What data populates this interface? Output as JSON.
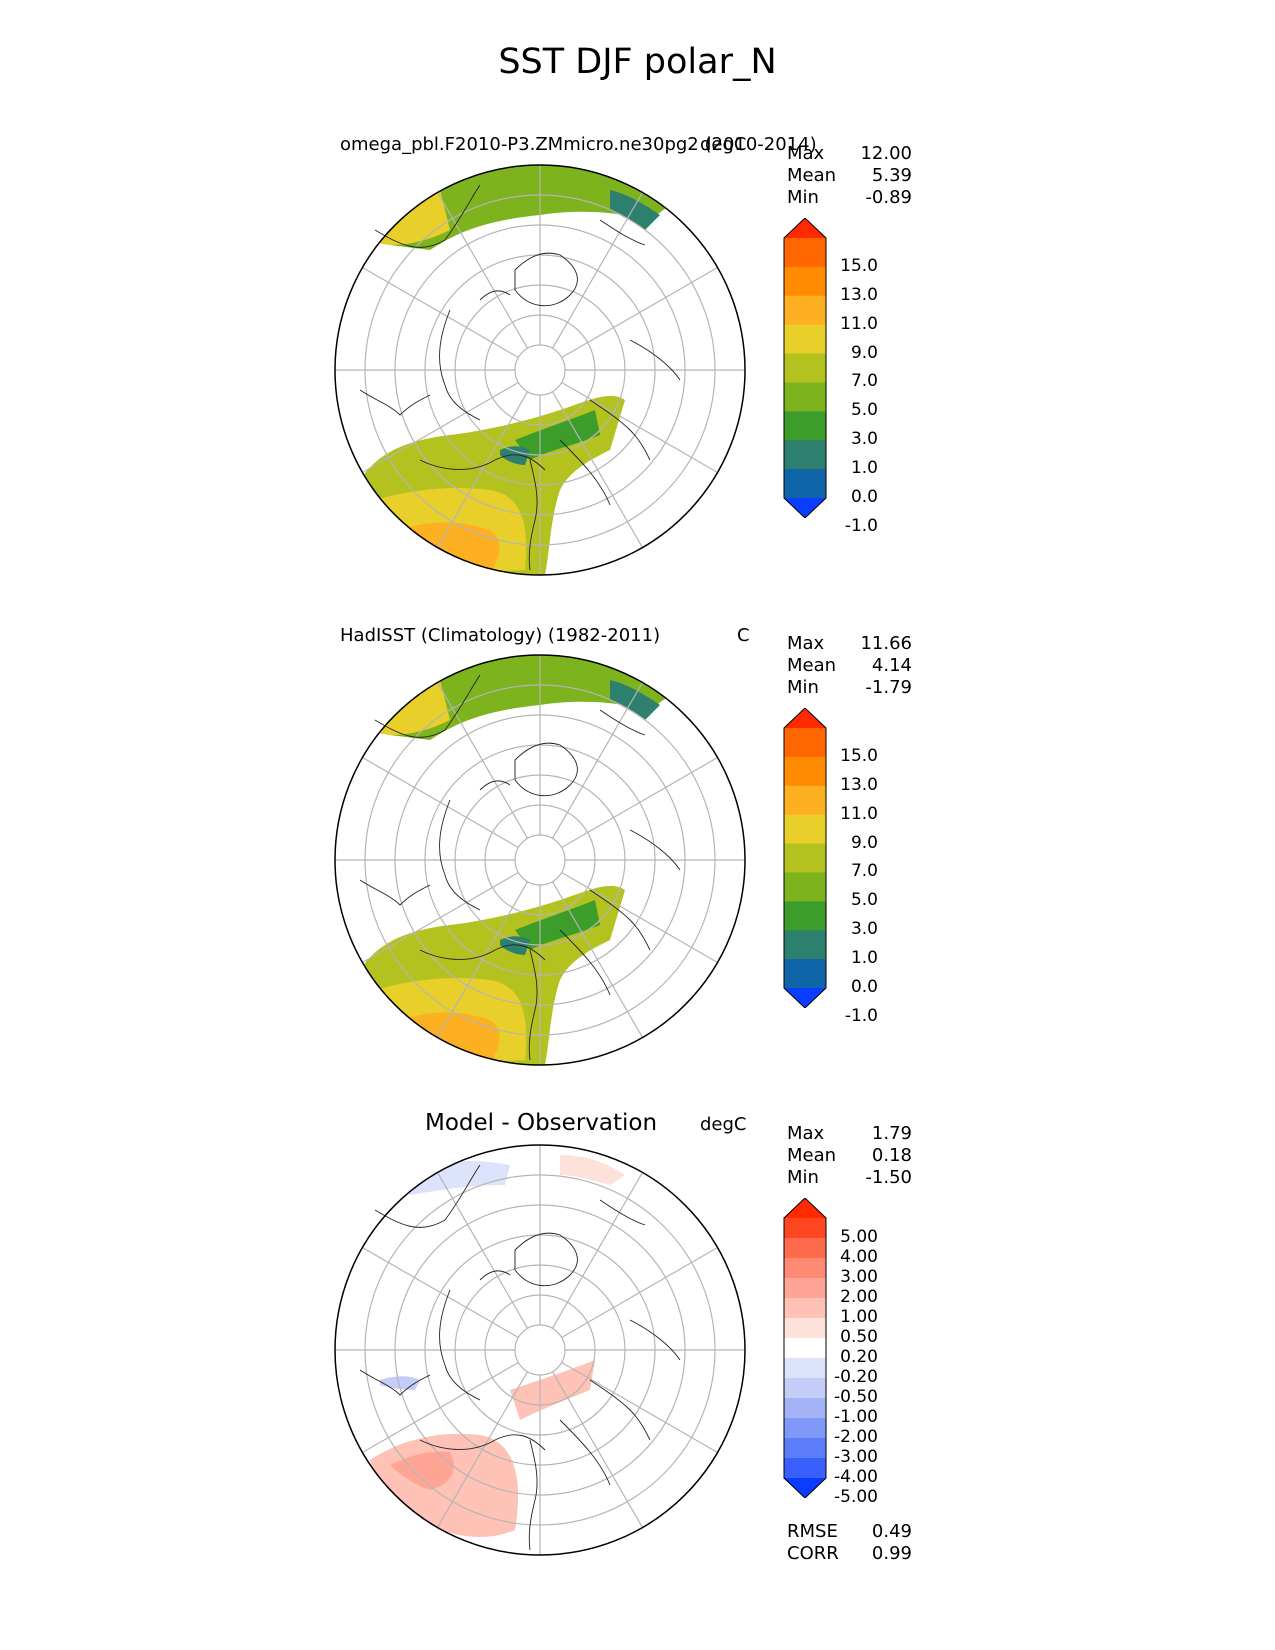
{
  "title": "SST DJF polar_N",
  "panels": [
    {
      "id": "test",
      "title_left": "omega_pbl.F2010-P3.ZMmicro.ne30pg2 (2010-2014)",
      "title_right": "degC",
      "stats": [
        {
          "label": "Max",
          "value": "12.00"
        },
        {
          "label": "Mean",
          "value": "5.39"
        },
        {
          "label": "Min",
          "value": "-0.89"
        }
      ],
      "colorbar": {
        "ticks": [
          "15.0",
          "13.0",
          "11.0",
          "9.0",
          "7.0",
          "5.0",
          "3.0",
          "1.0",
          "0.0",
          "-1.0"
        ],
        "colors": [
          "#ff2a00",
          "#ff6600",
          "#ff8c00",
          "#fdb022",
          "#e8cf29",
          "#b4c21f",
          "#7db31c",
          "#3c9d2b",
          "#2d7f6e",
          "#0f65a8",
          "#0a3dff"
        ]
      }
    },
    {
      "id": "ref",
      "title_left": "HadISST (Climatology) (1982-2011)",
      "title_right": "C",
      "stats": [
        {
          "label": "Max",
          "value": "11.66"
        },
        {
          "label": "Mean",
          "value": "4.14"
        },
        {
          "label": "Min",
          "value": "-1.79"
        }
      ],
      "colorbar": {
        "ticks": [
          "15.0",
          "13.0",
          "11.0",
          "9.0",
          "7.0",
          "5.0",
          "3.0",
          "1.0",
          "0.0",
          "-1.0"
        ],
        "colors": [
          "#ff2a00",
          "#ff6600",
          "#ff8c00",
          "#fdb022",
          "#e8cf29",
          "#b4c21f",
          "#7db31c",
          "#3c9d2b",
          "#2d7f6e",
          "#0f65a8",
          "#0a3dff"
        ]
      }
    },
    {
      "id": "diff",
      "title_center": "Model - Observation",
      "title_right": "degC",
      "stats": [
        {
          "label": "Max",
          "value": "1.79"
        },
        {
          "label": "Mean",
          "value": "0.18"
        },
        {
          "label": "Min",
          "value": "-1.50"
        }
      ],
      "colorbar": {
        "ticks": [
          "5.00",
          "4.00",
          "3.00",
          "2.00",
          "1.00",
          "0.50",
          "0.20",
          "-0.20",
          "-0.50",
          "-1.00",
          "-2.00",
          "-3.00",
          "-4.00",
          "-5.00"
        ],
        "colors": [
          "#ff2a00",
          "#ff4622",
          "#ff6b4d",
          "#ff8a73",
          "#ffa595",
          "#ffc2b6",
          "#fde1db",
          "#ffffff",
          "#dde3fb",
          "#c3cdf7",
          "#a4b3f6",
          "#8099f9",
          "#5d7efb",
          "#3960fd",
          "#0a3dff"
        ]
      },
      "metrics": [
        {
          "label": "RMSE",
          "value": "0.49"
        },
        {
          "label": "CORR",
          "value": "0.99"
        }
      ]
    }
  ]
}
